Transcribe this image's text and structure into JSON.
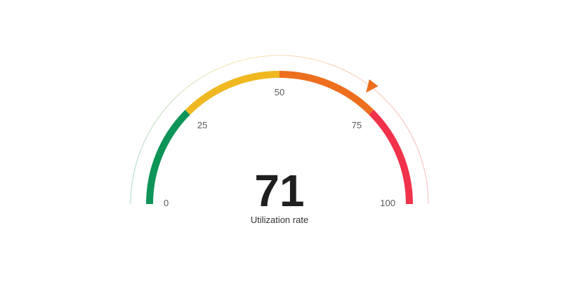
{
  "chart_data": {
    "type": "gauge",
    "value": 71,
    "display_value": "71",
    "caption": "Utilization rate",
    "range": [
      0,
      100
    ],
    "ticks": [
      {
        "value": 0,
        "label": "0"
      },
      {
        "value": 25,
        "label": "25"
      },
      {
        "value": 50,
        "label": "50"
      },
      {
        "value": 75,
        "label": "75"
      },
      {
        "value": 100,
        "label": "100"
      }
    ],
    "segments": [
      {
        "from": 0,
        "to": 25,
        "color": "#0e9457"
      },
      {
        "from": 25,
        "to": 50,
        "color": "#efb820"
      },
      {
        "from": 50,
        "to": 75,
        "color": "#ec6f1f"
      },
      {
        "from": 75,
        "to": 100,
        "color": "#f0324a"
      }
    ],
    "pointer_color": "#ec6f1f"
  }
}
